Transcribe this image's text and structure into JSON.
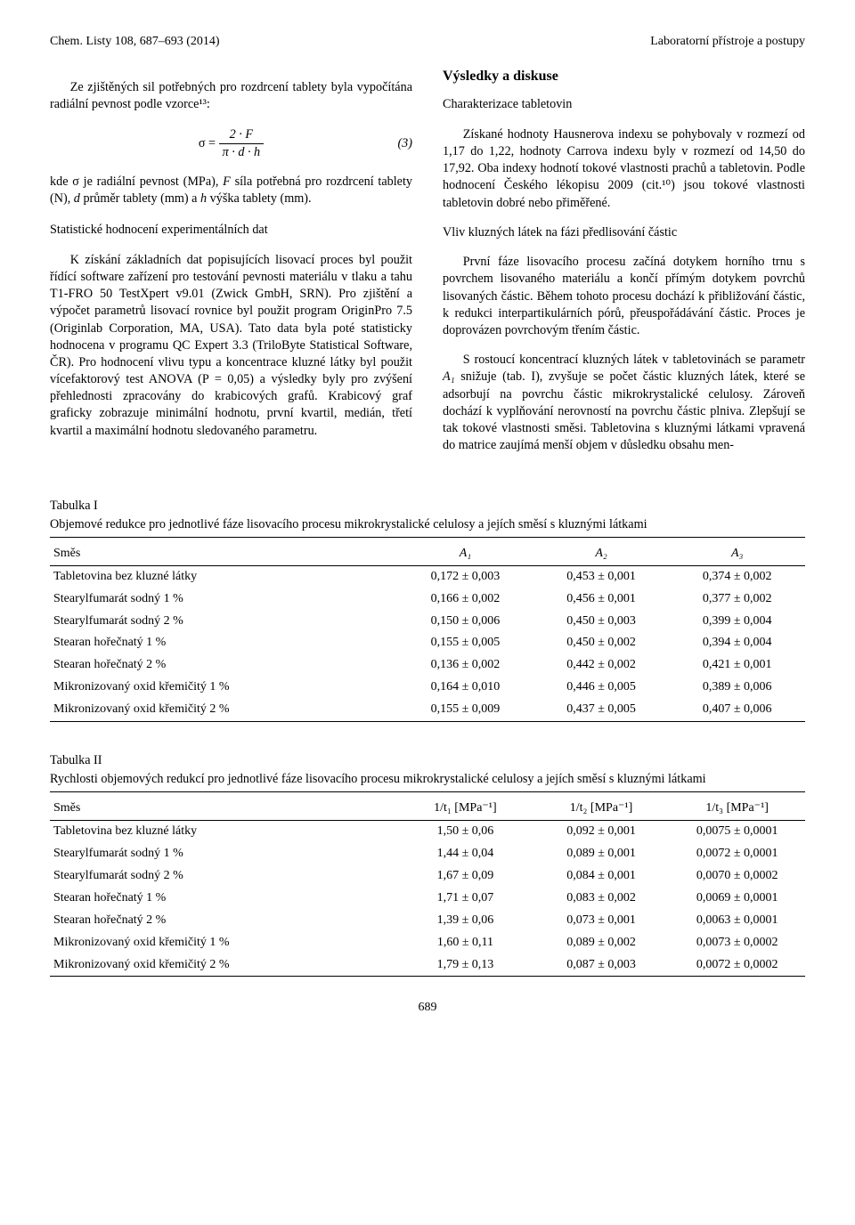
{
  "header": {
    "left": "Chem. Listy 108, 687–693 (2014)",
    "right": "Laboratorní přístroje a postupy"
  },
  "left_col": {
    "p1": "Ze zjištěných sil potřebných pro rozdrcení tablety byla vypočítána radiální pevnost podle vzorce¹³:",
    "eq_sigma": "σ =",
    "eq_num": "2 · F",
    "eq_den": "π · d · h",
    "eq_label": "(3)",
    "p2a": "kde σ je radiální pevnost (MPa), ",
    "p2b": "F",
    "p2c": " síla potřebná pro rozdrcení tablety (N), ",
    "p2d": "d",
    "p2e": " průměr tablety (mm) a ",
    "p2f": "h",
    "p2g": " výška tablety (mm).",
    "sub1": "Statistické hodnocení experimentálních dat",
    "p3": "K získání základních dat popisujících lisovací proces byl použit řídící software zařízení pro testování pevnosti materiálu v tlaku a tahu T1-FRO 50 TestXpert v9.01 (Zwick GmbH, SRN). Pro zjištění a výpočet parametrů lisovací rovnice byl použit program OriginPro 7.5 (Originlab Corporation, MA, USA). Tato data byla poté statisticky hodnocena v programu QC Expert 3.3 (TriloByte Statistical Software, ČR). Pro hodnocení vlivu typu a koncentrace kluzné látky byl použit vícefaktorový test ANOVA (P = 0,05) a výsledky byly pro zvýšení přehlednosti zpracovány do krabicových grafů. Krabicový graf graficky zobrazuje minimální hodnotu, první kvartil, medián, třetí kvartil a maximální hodnotu sledovaného parametru."
  },
  "right_col": {
    "h2": "Výsledky a diskuse",
    "sub1": "Charakterizace tabletovin",
    "p1": "Získané hodnoty Hausnerova indexu se pohybovaly v rozmezí od 1,17 do 1,22, hodnoty Carrova indexu byly v rozmezí od 14,50 do 17,92. Oba indexy hodnotí tokové vlastnosti prachů a tabletovin. Podle hodnocení Českého lékopisu 2009 (cit.¹⁰) jsou tokové vlastnosti tabletovin dobré nebo přiměřené.",
    "sub2": "Vliv kluzných látek na fázi předlisování částic",
    "p2": "První fáze lisovacího procesu začíná dotykem horního trnu s povrchem lisovaného materiálu a končí přímým dotykem povrchů lisovaných částic. Během tohoto procesu dochází k přibližování částic, k redukci interpartikulárních pórů, přeuspořádávání částic. Proces je doprovázen povrchovým třením částic.",
    "p3a": "S rostoucí koncentrací kluzných látek v tabletovinách se parametr ",
    "p3b": "A₁",
    "p3c": " snižuje (tab. I), zvyšuje se počet částic kluzných látek, které se adsorbují na povrchu částic mikrokrystalické celulosy. Zároveň dochází k vyplňování nerovností na povrchu částic plniva. Zlepšují se tak tokové vlastnosti směsi. Tabletovina s kluznými látkami vpravená do matrice zaujímá menší objem v důsledku obsahu men-"
  },
  "table1": {
    "title": "Tabulka I",
    "caption": "Objemové redukce pro jednotlivé fáze lisovacího procesu mikrokrystalické celulosy a jejích směsí s kluznými látkami",
    "col0": "Směs",
    "col1": "A₁",
    "col2": "A₂",
    "col3": "A₃",
    "rows": [
      {
        "name": "Tabletovina bez kluzné látky",
        "a1": "0,172 ± 0,003",
        "a2": "0,453 ± 0,001",
        "a3": "0,374 ± 0,002"
      },
      {
        "name": "Stearylfumarát sodný 1 %",
        "a1": "0,166 ± 0,002",
        "a2": "0,456 ± 0,001",
        "a3": "0,377 ± 0,002"
      },
      {
        "name": "Stearylfumarát sodný 2 %",
        "a1": "0,150 ± 0,006",
        "a2": "0,450 ± 0,003",
        "a3": "0,399 ± 0,004"
      },
      {
        "name": "Stearan hořečnatý 1 %",
        "a1": "0,155 ± 0,005",
        "a2": "0,450 ± 0,002",
        "a3": "0,394 ± 0,004"
      },
      {
        "name": "Stearan hořečnatý 2 %",
        "a1": "0,136 ± 0,002",
        "a2": "0,442 ± 0,002",
        "a3": "0,421 ± 0,001"
      },
      {
        "name": "Mikronizovaný oxid křemičitý 1 %",
        "a1": "0,164 ± 0,010",
        "a2": "0,446 ± 0,005",
        "a3": "0,389 ± 0,006"
      },
      {
        "name": "Mikronizovaný oxid křemičitý 2 %",
        "a1": "0,155 ± 0,009",
        "a2": "0,437 ± 0,005",
        "a3": "0,407 ± 0,006"
      }
    ]
  },
  "table2": {
    "title": "Tabulka II",
    "caption": "Rychlosti objemových redukcí pro jednotlivé fáze lisovacího procesu mikrokrystalické celulosy a jejích směsí s kluznými látkami",
    "col0": "Směs",
    "col1": "1/t₁ [MPa⁻¹]",
    "col2": "1/t₂ [MPa⁻¹]",
    "col3": "1/t₃ [MPa⁻¹]",
    "rows": [
      {
        "name": "Tabletovina bez kluzné látky",
        "a1": "1,50 ± 0,06",
        "a2": "0,092 ± 0,001",
        "a3": "0,0075 ± 0,0001"
      },
      {
        "name": "Stearylfumarát sodný 1 %",
        "a1": "1,44 ± 0,04",
        "a2": "0,089 ± 0,001",
        "a3": "0,0072 ± 0,0001"
      },
      {
        "name": "Stearylfumarát sodný 2 %",
        "a1": "1,67 ± 0,09",
        "a2": "0,084 ± 0,001",
        "a3": "0,0070 ± 0,0002"
      },
      {
        "name": "Stearan hořečnatý 1 %",
        "a1": "1,71 ± 0,07",
        "a2": "0,083 ± 0,002",
        "a3": "0,0069 ± 0,0001"
      },
      {
        "name": "Stearan hořečnatý 2 %",
        "a1": "1,39 ± 0,06",
        "a2": "0,073 ± 0,001",
        "a3": "0,0063 ± 0,0001"
      },
      {
        "name": "Mikronizovaný oxid křemičitý 1 %",
        "a1": "1,60 ± 0,11",
        "a2": "0,089 ± 0,002",
        "a3": "0,0073 ± 0,0002"
      },
      {
        "name": "Mikronizovaný oxid křemičitý 2 %",
        "a1": "1,79 ± 0,13",
        "a2": "0,087 ± 0,003",
        "a3": "0,0072 ± 0,0002"
      }
    ]
  },
  "pagenum": "689"
}
